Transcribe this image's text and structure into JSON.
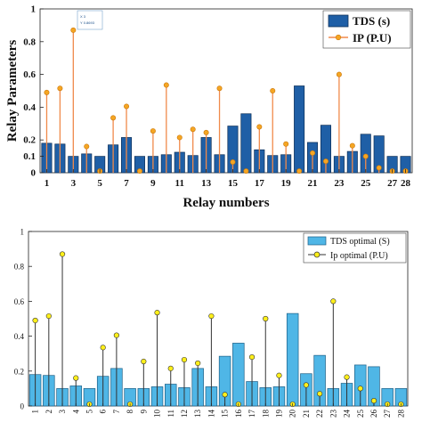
{
  "chart_data": [
    {
      "type": "bar",
      "xlabel": "Relay numbers",
      "ylabel": "Relay Parameters",
      "ylim": [
        0,
        1
      ],
      "yticks": [
        0,
        0.1,
        0.2,
        0.4,
        0.6,
        0.8,
        1
      ],
      "ytick_labels": [
        "0",
        "0.1",
        "0.2",
        "0.4",
        "0.6",
        "0.8",
        "1"
      ],
      "xticks": [
        1,
        3,
        5,
        7,
        9,
        11,
        13,
        15,
        17,
        19,
        21,
        23,
        25,
        27,
        28
      ],
      "x": [
        1,
        2,
        3,
        4,
        5,
        6,
        7,
        8,
        9,
        10,
        11,
        12,
        13,
        14,
        15,
        16,
        17,
        18,
        19,
        20,
        21,
        22,
        23,
        24,
        25,
        26,
        27,
        28
      ],
      "grid": false,
      "legend_position": "top-right",
      "colors": {
        "bar": "#1f5fa6",
        "bar_edge": "#0e2f57",
        "stem": "#f08a4b",
        "marker": "#f5a623"
      },
      "series": [
        {
          "name": "TDS (s)",
          "kind": "bar",
          "values": [
            0.18,
            0.175,
            0.1,
            0.115,
            0.1,
            0.17,
            0.215,
            0.1,
            0.1,
            0.11,
            0.125,
            0.105,
            0.215,
            0.11,
            0.285,
            0.36,
            0.14,
            0.105,
            0.11,
            0.53,
            0.185,
            0.29,
            0.1,
            0.13,
            0.235,
            0.225,
            0.1,
            0.1
          ]
        },
        {
          "name": "IP (P.U)",
          "kind": "stem",
          "values": [
            0.49,
            0.515,
            0.87,
            0.16,
            0.01,
            0.335,
            0.405,
            0.01,
            0.255,
            0.535,
            0.215,
            0.265,
            0.245,
            0.515,
            0.065,
            0.01,
            0.28,
            0.5,
            0.175,
            0.01,
            0.12,
            0.07,
            0.6,
            0.165,
            0.1,
            0.03,
            0.01,
            0.01
          ]
        }
      ],
      "datatip": {
        "x_text": "X 3",
        "y_text": "Y 0.8693"
      }
    },
    {
      "type": "bar",
      "xlabel": "",
      "ylabel": "",
      "ylim": [
        0,
        1
      ],
      "yticks": [
        0,
        0.2,
        0.4,
        0.6,
        0.8,
        1
      ],
      "ytick_labels": [
        "0",
        "0.2",
        "0.4",
        "0.6",
        "0.8",
        "1"
      ],
      "x": [
        1,
        2,
        3,
        4,
        5,
        6,
        7,
        8,
        9,
        10,
        11,
        12,
        13,
        14,
        15,
        16,
        17,
        18,
        19,
        20,
        21,
        22,
        23,
        24,
        25,
        26,
        27,
        28
      ],
      "x_tick_labels": [
        "1",
        "2",
        "3",
        "4",
        "5",
        "6",
        "7",
        "8",
        "9",
        "10",
        "11",
        "12",
        "13",
        "14",
        "15",
        "16",
        "17",
        "18",
        "19",
        "20",
        "21",
        "22",
        "23",
        "24",
        "25",
        "26",
        "27",
        "28"
      ],
      "grid": false,
      "legend_position": "top-right",
      "colors": {
        "bar": "#4fb6e6",
        "bar_edge": "#1d5f86",
        "stem": "#333333",
        "marker": "#ffef1a"
      },
      "series": [
        {
          "name": "TDS optimal (S)",
          "kind": "bar",
          "values": [
            0.18,
            0.175,
            0.1,
            0.115,
            0.1,
            0.17,
            0.215,
            0.1,
            0.1,
            0.11,
            0.125,
            0.105,
            0.215,
            0.11,
            0.285,
            0.36,
            0.14,
            0.105,
            0.11,
            0.53,
            0.185,
            0.29,
            0.1,
            0.13,
            0.235,
            0.225,
            0.1,
            0.1
          ]
        },
        {
          "name": "Ip optimal (P.U)",
          "kind": "stem",
          "values": [
            0.49,
            0.515,
            0.87,
            0.16,
            0.01,
            0.335,
            0.405,
            0.01,
            0.255,
            0.535,
            0.215,
            0.265,
            0.245,
            0.515,
            0.065,
            0.01,
            0.28,
            0.5,
            0.175,
            0.01,
            0.12,
            0.07,
            0.6,
            0.165,
            0.1,
            0.03,
            0.01,
            0.01
          ]
        }
      ]
    }
  ]
}
